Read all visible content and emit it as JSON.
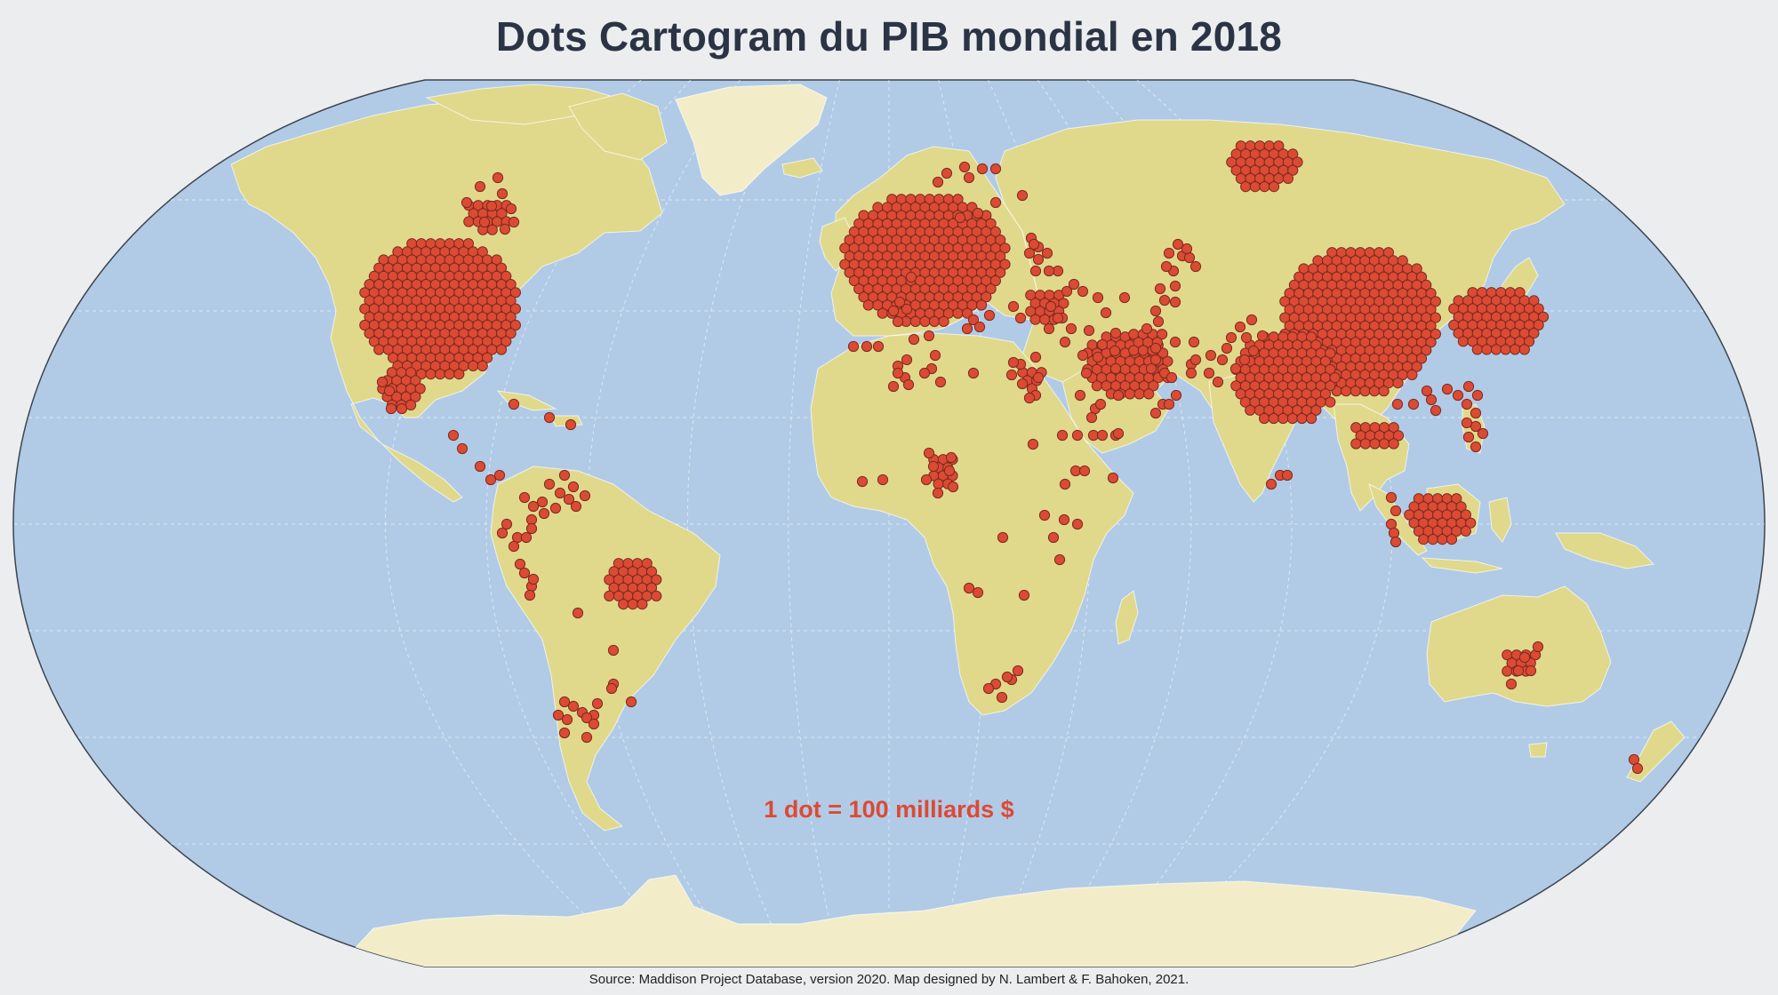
{
  "title": "Dots Cartogram du PIB mondial en 2018",
  "legend": "1 dot = 100 milliards $",
  "source": "Source: Maddison Project Database, version 2020. Map designed by N. Lambert & F. Bahoken, 2021.",
  "colors": {
    "background": "#ecedee",
    "ocean": "#b1cbe6",
    "land": "#e0d98c",
    "antarctica_greenland": "#f2edc8",
    "dot_fill": "#dc4a34",
    "dot_stroke": "#7a2b1f",
    "title": "#2b3445",
    "legend": "#dc4a34"
  }
}
